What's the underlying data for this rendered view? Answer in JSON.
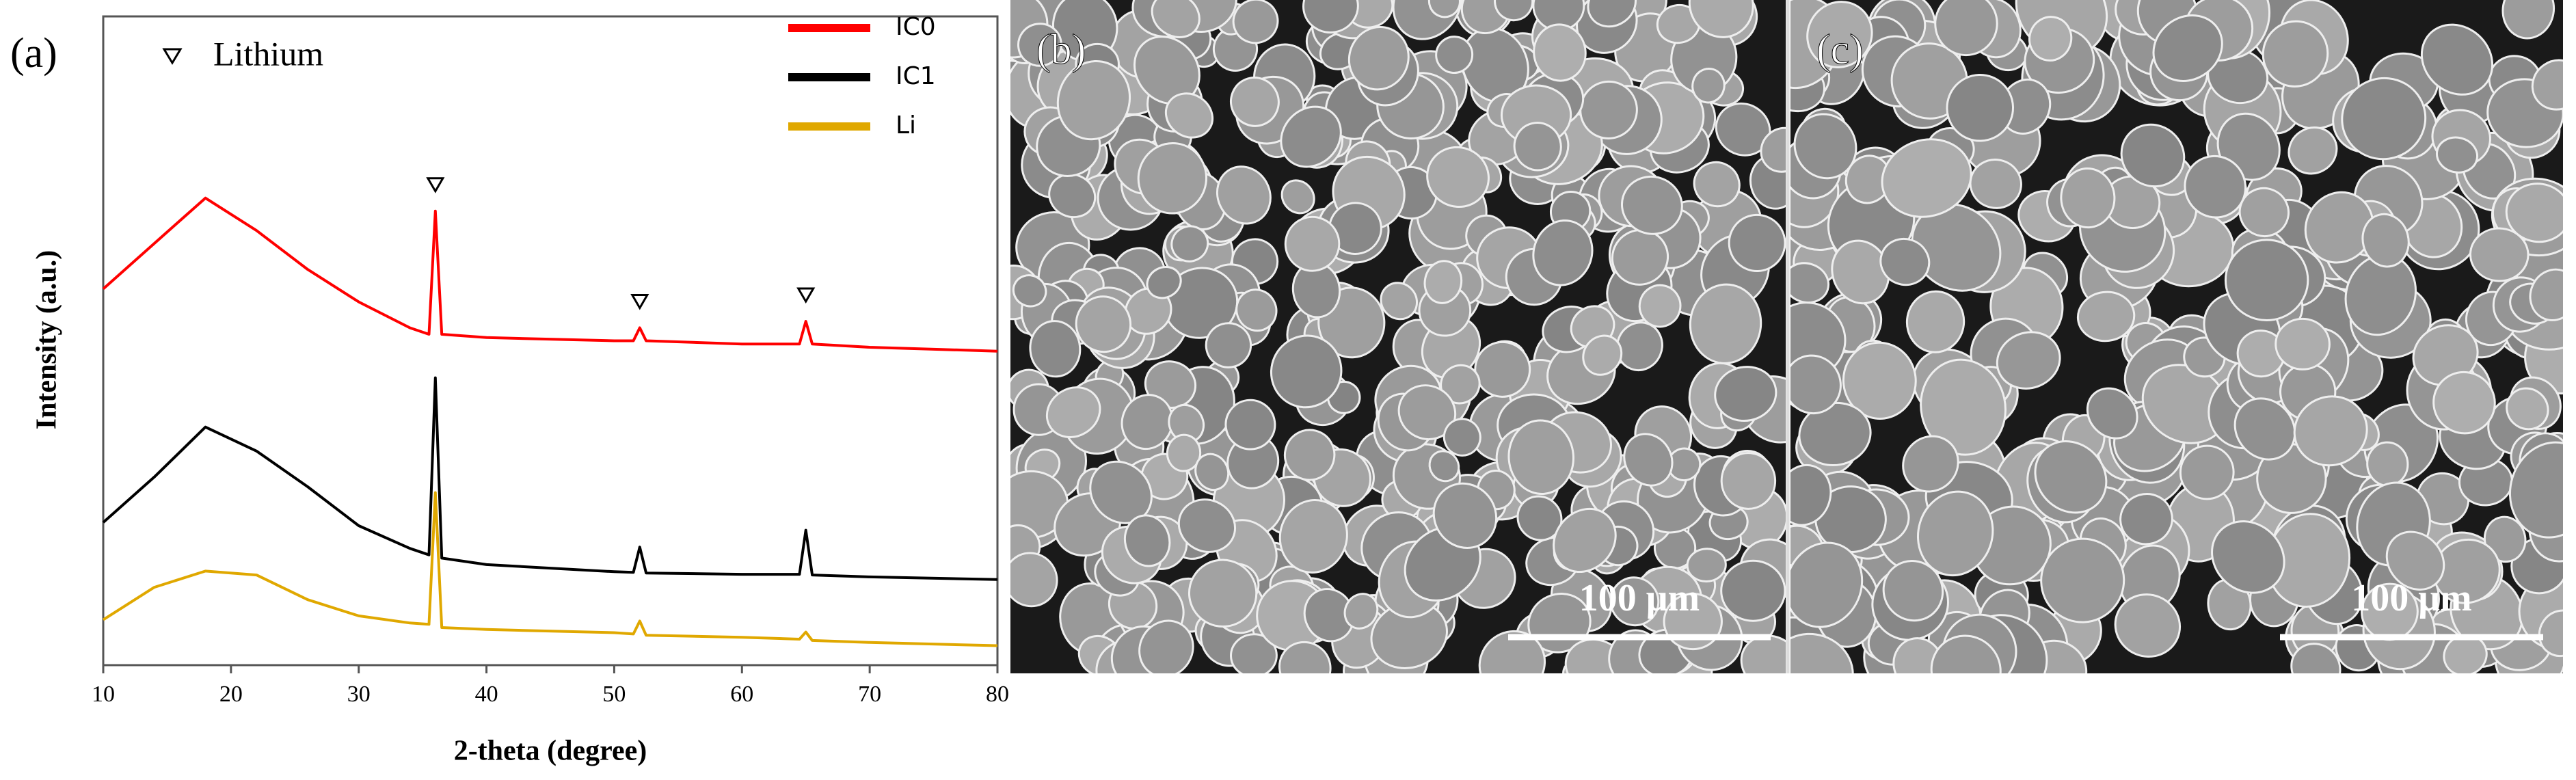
{
  "chart_data": {
    "type": "line",
    "panel_label": "(a)",
    "marker_legend": "Lithium",
    "xlabel": "2-theta (degree)",
    "ylabel": "Intensity (a.u.)",
    "x": [
      10,
      14,
      18,
      22,
      26,
      30,
      34,
      35.5,
      36,
      36.5,
      40,
      50,
      51.5,
      52,
      52.5,
      60,
      64.5,
      65,
      65.5,
      70,
      80
    ],
    "series": [
      {
        "name": "IC0",
        "color": "#ff0000",
        "values": [
          58,
          65,
          72,
          67,
          61,
          56,
          52,
          51,
          70,
          51,
          50.5,
          50,
          50,
          52,
          50,
          49.5,
          49.5,
          53,
          49.5,
          49,
          48.4
        ]
      },
      {
        "name": "IC1",
        "color": "#000000",
        "values": [
          22,
          29,
          36.7,
          33,
          27.5,
          21.5,
          18,
          17,
          44.3,
          16.5,
          15.5,
          14.4,
          14.3,
          18.2,
          14.2,
          14,
          14,
          20.8,
          13.9,
          13.6,
          13.2
        ]
      },
      {
        "name": "Li",
        "color": "#e0a800",
        "values": [
          7,
          12,
          14.5,
          13.9,
          10.1,
          7.6,
          6.5,
          6.3,
          26.6,
          5.8,
          5.5,
          5,
          4.8,
          6.8,
          4.6,
          4.3,
          4,
          5.1,
          3.8,
          3.5,
          3
        ]
      }
    ],
    "peak_markers": [
      36,
      52,
      65
    ],
    "xlim": [
      10,
      80
    ],
    "xticks": [
      10,
      20,
      30,
      40,
      50,
      60,
      70,
      80
    ],
    "ylim": [
      0,
      100
    ],
    "legend": "upper right"
  },
  "panels": [
    {
      "label": "(b)",
      "scale_bar": "100 μm"
    },
    {
      "label": "(c)",
      "scale_bar": "100 μm"
    }
  ]
}
